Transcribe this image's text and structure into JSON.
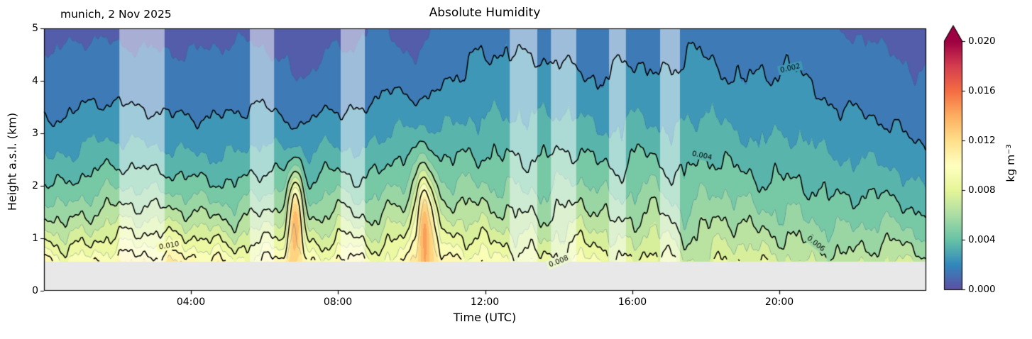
{
  "title": "Absolute Humidity",
  "annotation": "munich, 2 Nov 2025",
  "xlabel": "Time (UTC)",
  "ylabel": "Height a.s.l. (km)",
  "chart_data": {
    "type": "filled_contour",
    "title": "Absolute Humidity",
    "annotation": "munich, 2 Nov 2025",
    "xlabel": "Time (UTC)",
    "ylabel": "Height a.s.l. (km)",
    "x_ticks": [
      "04:00",
      "08:00",
      "12:00",
      "16:00",
      "20:00"
    ],
    "x_ticks_hours": [
      4,
      8,
      12,
      16,
      20
    ],
    "y_ticks": [
      "0",
      "1",
      "2",
      "3",
      "4",
      "5"
    ],
    "time_range_hours": [
      0,
      24
    ],
    "height_range_km": [
      0,
      5
    ],
    "ground_km": 0.55,
    "ground_color": "#e8e8e8",
    "fill_step": 0.001,
    "minor_levels": [
      0.001,
      0.003,
      0.005,
      0.007,
      0.009,
      0.011
    ],
    "contour_levels": [
      0.002,
      0.004,
      0.006,
      0.008,
      0.01
    ],
    "contour_labels": [
      {
        "level": 0.01,
        "text": "0.010",
        "t": 3.4
      },
      {
        "level": 0.008,
        "text": "0.008",
        "t": 14.0
      },
      {
        "level": 0.004,
        "text": "0.004",
        "t": 17.9
      },
      {
        "level": 0.002,
        "text": "0.002",
        "t": 20.3
      },
      {
        "level": 0.006,
        "text": "0.006",
        "t": 21.0
      }
    ],
    "colorbar": {
      "label": "kg m⁻³",
      "ticks": [
        "0.000",
        "0.004",
        "0.008",
        "0.012",
        "0.016",
        "0.020"
      ],
      "tick_values": [
        0,
        0.004,
        0.008,
        0.012,
        0.016,
        0.02
      ],
      "vmin": 0,
      "vmax": 0.02,
      "extend": "max",
      "colormap": "Spectral_r",
      "spectral_colors": [
        "#9e0142",
        "#d53e4f",
        "#f46d43",
        "#fdae61",
        "#fee08b",
        "#ffffbf",
        "#e6f598",
        "#abdda4",
        "#66c2a5",
        "#3288bd",
        "#5e4fa2"
      ]
    },
    "profile": {
      "t": [
        0,
        2,
        4,
        6,
        8,
        10,
        12,
        14,
        16,
        18,
        20,
        22,
        23,
        24
      ],
      "c0": [
        0.0135,
        0.014,
        0.0137,
        0.0138,
        0.0135,
        0.0128,
        0.0118,
        0.0112,
        0.0105,
        0.009,
        0.0095,
        0.0086,
        0.0085,
        0.009
      ],
      "H": [
        1.75,
        1.8,
        1.78,
        1.76,
        1.8,
        2.1,
        2.55,
        2.45,
        2.55,
        2.9,
        2.65,
        2.25,
        2.2,
        1.9
      ]
    },
    "bumps": [
      {
        "t": 6.85,
        "z": 1.6,
        "st": 0.15,
        "sz": 0.6,
        "amp": 1.2
      },
      {
        "t": 10.35,
        "z": 1.5,
        "st": 0.18,
        "sz": 0.7,
        "amp": 1.0
      },
      {
        "t": 7.1,
        "z": 4.8,
        "st": 0.3,
        "sz": 1.0,
        "amp": -0.45
      },
      {
        "t": 10.0,
        "z": 5.0,
        "st": 0.5,
        "sz": 0.9,
        "amp": -0.35
      }
    ],
    "gap_stripes": [
      [
        2.05,
        3.28
      ],
      [
        5.6,
        6.26
      ],
      [
        8.07,
        8.73
      ],
      [
        12.67,
        13.42
      ],
      [
        13.79,
        14.48
      ],
      [
        15.37,
        15.83
      ],
      [
        16.76,
        17.3
      ]
    ],
    "stripe_alpha": 0.5
  }
}
